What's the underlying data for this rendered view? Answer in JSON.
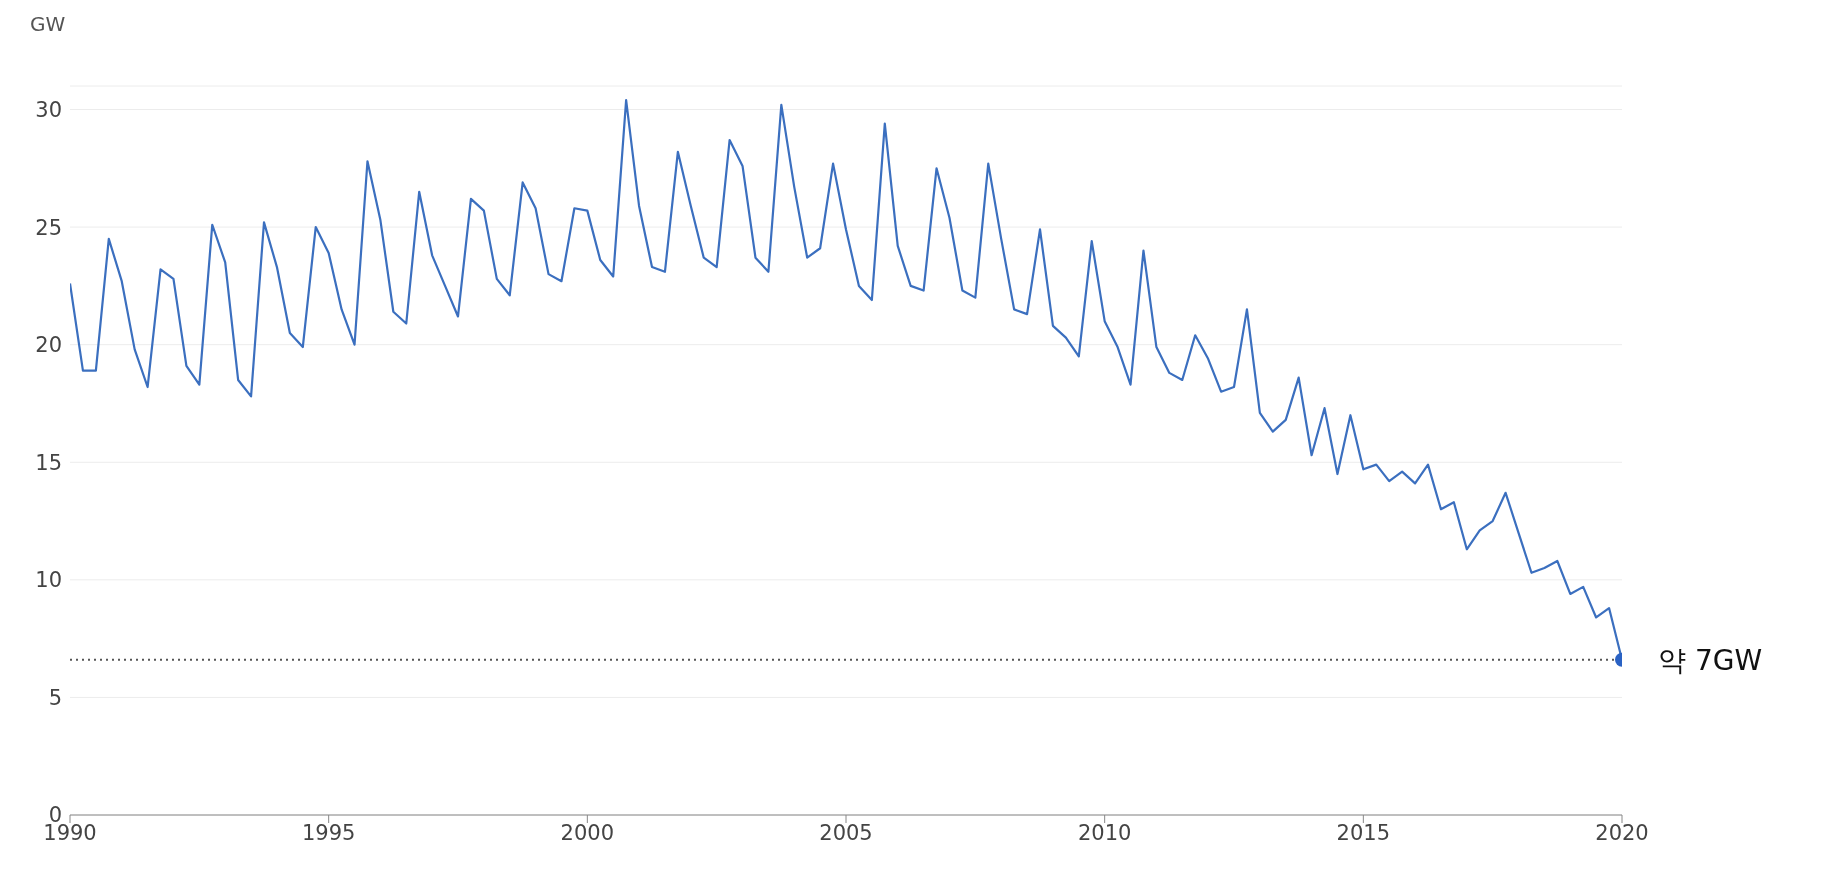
{
  "chart_data": {
    "type": "line",
    "ylabel": "GW",
    "x": [
      1990,
      1990.25,
      1990.5,
      1990.75,
      1991,
      1991.25,
      1991.5,
      1991.75,
      1992,
      1992.25,
      1992.5,
      1992.75,
      1993,
      1993.25,
      1993.5,
      1993.75,
      1994,
      1994.25,
      1994.5,
      1994.75,
      1995,
      1995.25,
      1995.5,
      1995.75,
      1996,
      1996.25,
      1996.5,
      1996.75,
      1997,
      1997.25,
      1997.5,
      1997.75,
      1998,
      1998.25,
      1998.5,
      1998.75,
      1999,
      1999.25,
      1999.5,
      1999.75,
      2000,
      2000.25,
      2000.5,
      2000.75,
      2001,
      2001.25,
      2001.5,
      2001.75,
      2002,
      2002.25,
      2002.5,
      2002.75,
      2003,
      2003.25,
      2003.5,
      2003.75,
      2004,
      2004.25,
      2004.5,
      2004.75,
      2005,
      2005.25,
      2005.5,
      2005.75,
      2006,
      2006.25,
      2006.5,
      2006.75,
      2007,
      2007.25,
      2007.5,
      2007.75,
      2008,
      2008.25,
      2008.5,
      2008.75,
      2009,
      2009.25,
      2009.5,
      2009.75,
      2010,
      2010.25,
      2010.5,
      2010.75,
      2011,
      2011.25,
      2011.5,
      2011.75,
      2012,
      2012.25,
      2012.5,
      2012.75,
      2013,
      2013.25,
      2013.5,
      2013.75,
      2014,
      2014.25,
      2014.5,
      2014.75,
      2015,
      2015.25,
      2015.5,
      2015.75,
      2016,
      2016.25,
      2016.5,
      2016.75,
      2017,
      2017.25,
      2017.5,
      2017.75,
      2018,
      2018.25,
      2018.5,
      2018.75,
      2019,
      2019.25,
      2019.5,
      2019.75,
      2020
    ],
    "series": [
      {
        "color": "#3b6fbf",
        "values": [
          22.6,
          18.9,
          18.9,
          24.5,
          22.7,
          19.8,
          18.2,
          23.2,
          22.8,
          19.1,
          18.3,
          25.1,
          23.5,
          18.5,
          17.8,
          25.2,
          23.3,
          20.5,
          19.9,
          25.0,
          23.9,
          21.5,
          20.0,
          27.8,
          25.3,
          21.4,
          20.9,
          26.5,
          23.8,
          22.5,
          21.2,
          26.2,
          25.7,
          22.8,
          22.1,
          26.9,
          25.8,
          23.0,
          22.7,
          25.8,
          25.7,
          23.6,
          22.9,
          30.4,
          25.9,
          23.3,
          23.1,
          28.2,
          25.9,
          23.7,
          23.3,
          28.7,
          27.6,
          23.7,
          23.1,
          30.2,
          26.7,
          23.7,
          24.1,
          27.7,
          24.9,
          22.5,
          21.9,
          29.4,
          24.2,
          22.5,
          22.3,
          27.5,
          25.4,
          22.3,
          22.0,
          27.7,
          24.5,
          21.5,
          21.3,
          24.9,
          20.8,
          20.3,
          19.5,
          24.4,
          21.0,
          19.9,
          18.3,
          24.0,
          19.9,
          18.8,
          18.5,
          20.4,
          19.4,
          18.0,
          18.2,
          21.5,
          17.1,
          16.3,
          16.8,
          18.6,
          15.3,
          17.3,
          14.5,
          17.0,
          14.7,
          14.9,
          14.2,
          14.6,
          14.1,
          14.9,
          13.0,
          13.3,
          11.3,
          12.1,
          12.5,
          13.7,
          12.0,
          10.3,
          10.5,
          10.8,
          9.4,
          9.7,
          8.4,
          8.8,
          6.6
        ]
      },
      {
        "type": "scatter",
        "color": "#2a62c4",
        "x": [
          2020
        ],
        "values": [
          6.6
        ]
      }
    ],
    "xlim": [
      1990,
      2020
    ],
    "xticks": [
      1990,
      1995,
      2000,
      2005,
      2010,
      2015,
      2020
    ],
    "ylim": [
      0,
      31
    ],
    "yticks": [
      0,
      5,
      10,
      15,
      20,
      25,
      30
    ],
    "grid": "y",
    "legend": false,
    "line_style": "solid",
    "ref_lines": [
      {
        "axis": "y",
        "value": 6.6,
        "color": "#555555",
        "line_style": "dotted"
      }
    ],
    "annotations": [
      {
        "text": "약 7GW",
        "x": 2020,
        "y": 6.6
      }
    ]
  }
}
